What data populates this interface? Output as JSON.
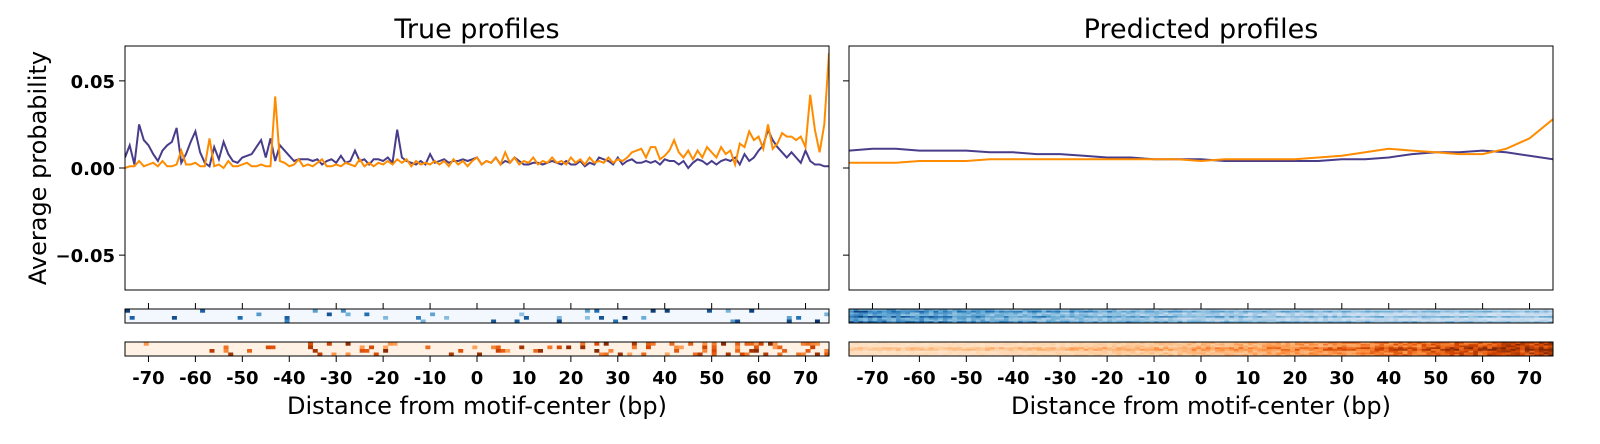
{
  "chart_data": [
    {
      "type": "line",
      "title": "True profiles",
      "xlabel": "Distance from motif-center (bp)",
      "ylabel": "Average probability",
      "xlim": [
        -75,
        75
      ],
      "ylim": [
        -0.07,
        0.07
      ],
      "xticks": [
        "-70",
        "-60",
        "-50",
        "-40",
        "-30",
        "-20",
        "-10",
        "0",
        "10",
        "20",
        "30",
        "40",
        "50",
        "60",
        "70"
      ],
      "yticks": [
        "0.05",
        "0.00",
        "−0.05"
      ],
      "colors": {
        "blue": "#483d8b",
        "orange": "#ff8c00"
      },
      "series": [
        {
          "color": "#483d8b",
          "x_start": -75,
          "x_step": 1,
          "values": [
            0.006,
            0.013,
            0.002,
            0.025,
            0.016,
            0.013,
            0.008,
            0.004,
            0.01,
            0.013,
            0.015,
            0.023,
            0.003,
            0.008,
            0.015,
            0.021,
            0.009,
            0.003,
            0.001,
            0.012,
            0.005,
            0.015,
            0.008,
            0.004,
            0.003,
            0.006,
            0.007,
            0.008,
            0.012,
            0.016,
            0.006,
            0.017,
            0.004,
            0.013,
            0.01,
            0.007,
            0.004,
            0.005,
            0.005,
            0.005,
            0.004,
            0.005,
            0.002,
            0.004,
            0.005,
            0.003,
            0.007,
            0.003,
            0.004,
            0.01,
            0.004,
            0.005,
            0.002,
            0.005,
            0.005,
            0.004,
            0.006,
            0.003,
            0.022,
            0.006,
            0.004,
            0.003,
            0.002,
            0.004,
            0.002,
            0.008,
            0.003,
            0.004,
            0.005,
            0.003,
            0.004,
            0.004,
            0.005,
            0.004,
            0.005,
            0.006,
            0.002,
            0.004,
            0.003,
            0.006,
            0.002,
            0.004,
            0.003,
            0.006,
            0.004,
            0.002,
            0.002,
            0.003,
            0.003,
            0.002,
            0.003,
            0.004,
            0.003,
            0.002,
            0.004,
            0.002,
            0.002,
            0.004,
            0.001,
            0.003,
            0.002,
            0.006,
            0.005,
            0.004,
            0.002,
            0.006,
            0.002,
            0.004,
            0.005,
            0.003,
            0.003,
            0.004,
            0.003,
            0.004,
            0.002,
            0.005,
            0.004,
            0.004,
            0.002,
            0.004,
            0.0,
            0.003,
            0.005,
            0.004,
            0.002,
            0.004,
            0.002,
            0.004,
            0.005,
            0.004,
            0.006,
            0.002,
            0.008,
            0.004,
            0.006,
            0.01,
            0.013,
            0.022,
            0.016,
            0.012,
            0.009,
            0.006,
            0.009,
            0.006,
            0.003,
            0.01,
            0.004,
            0.002,
            0.002,
            0.001,
            0.001
          ]
        },
        {
          "color": "#ff8c00",
          "x_start": -75,
          "x_step": 1,
          "values": [
            0.0,
            0.001,
            0.001,
            0.004,
            0.001,
            0.002,
            0.003,
            0.001,
            0.004,
            0.001,
            0.001,
            0.002,
            0.01,
            0.002,
            0.002,
            0.003,
            0.001,
            0.001,
            0.017,
            0.001,
            0.002,
            0.0,
            0.004,
            0.001,
            0.001,
            0.002,
            0.003,
            0.001,
            0.001,
            0.002,
            0.001,
            0.001,
            0.041,
            0.004,
            0.003,
            0.001,
            0.002,
            0.005,
            0.001,
            0.002,
            0.001,
            0.003,
            0.005,
            0.001,
            0.001,
            0.002,
            0.001,
            0.003,
            0.002,
            0.001,
            0.005,
            0.001,
            0.003,
            0.001,
            0.003,
            0.002,
            0.004,
            0.002,
            0.005,
            0.003,
            0.005,
            0.001,
            0.004,
            0.002,
            0.003,
            0.002,
            0.004,
            0.002,
            0.004,
            0.001,
            0.005,
            0.002,
            0.004,
            0.001,
            0.004,
            0.006,
            0.002,
            0.004,
            0.003,
            0.006,
            0.002,
            0.009,
            0.003,
            0.006,
            0.002,
            0.004,
            0.003,
            0.006,
            0.002,
            0.004,
            0.003,
            0.006,
            0.003,
            0.004,
            0.002,
            0.006,
            0.003,
            0.005,
            0.002,
            0.006,
            0.003,
            0.004,
            0.003,
            0.006,
            0.003,
            0.005,
            0.004,
            0.006,
            0.009,
            0.01,
            0.011,
            0.006,
            0.012,
            0.012,
            0.005,
            0.007,
            0.01,
            0.016,
            0.009,
            0.006,
            0.01,
            0.005,
            0.01,
            0.006,
            0.012,
            0.009,
            0.006,
            0.012,
            0.008,
            0.01,
            0.002,
            0.014,
            0.012,
            0.021,
            0.016,
            0.018,
            0.011,
            0.025,
            0.011,
            0.014,
            0.02,
            0.018,
            0.018,
            0.016,
            0.018,
            0.012,
            0.042,
            0.022,
            0.009,
            0.025,
            0.066
          ]
        }
      ],
      "heatmaps": [
        {
          "colormap": "Blues",
          "rows": 4
        },
        {
          "colormap": "Oranges",
          "rows": 4
        }
      ]
    },
    {
      "type": "line",
      "title": "Predicted profiles",
      "xlabel": "Distance from motif-center (bp)",
      "ylabel": "",
      "xlim": [
        -75,
        75
      ],
      "ylim": [
        -0.07,
        0.07
      ],
      "xticks": [
        "-70",
        "-60",
        "-50",
        "-40",
        "-30",
        "-20",
        "-10",
        "0",
        "10",
        "20",
        "30",
        "40",
        "50",
        "60",
        "70"
      ],
      "series": [
        {
          "color": "#483d8b",
          "x": [
            -75,
            -70,
            -65,
            -60,
            -55,
            -50,
            -45,
            -40,
            -35,
            -30,
            -25,
            -20,
            -15,
            -10,
            -5,
            0,
            5,
            10,
            15,
            20,
            25,
            30,
            35,
            40,
            45,
            50,
            55,
            60,
            65,
            70,
            75
          ],
          "values": [
            0.01,
            0.011,
            0.011,
            0.01,
            0.01,
            0.01,
            0.009,
            0.009,
            0.008,
            0.008,
            0.007,
            0.006,
            0.006,
            0.005,
            0.005,
            0.005,
            0.004,
            0.004,
            0.004,
            0.004,
            0.004,
            0.005,
            0.005,
            0.006,
            0.008,
            0.009,
            0.009,
            0.01,
            0.009,
            0.007,
            0.005
          ]
        },
        {
          "color": "#ff8c00",
          "x": [
            -75,
            -70,
            -65,
            -60,
            -55,
            -50,
            -45,
            -40,
            -35,
            -30,
            -25,
            -20,
            -15,
            -10,
            -5,
            0,
            5,
            10,
            15,
            20,
            25,
            30,
            35,
            40,
            45,
            50,
            55,
            60,
            65,
            70,
            75
          ],
          "values": [
            0.003,
            0.003,
            0.003,
            0.004,
            0.004,
            0.004,
            0.005,
            0.005,
            0.005,
            0.005,
            0.005,
            0.005,
            0.005,
            0.005,
            0.005,
            0.004,
            0.005,
            0.005,
            0.005,
            0.005,
            0.006,
            0.007,
            0.009,
            0.011,
            0.01,
            0.009,
            0.008,
            0.008,
            0.011,
            0.017,
            0.028
          ]
        }
      ],
      "heatmaps": [
        {
          "colormap": "Blues",
          "rows": 8
        },
        {
          "colormap": "Oranges",
          "rows": 8
        }
      ]
    }
  ]
}
